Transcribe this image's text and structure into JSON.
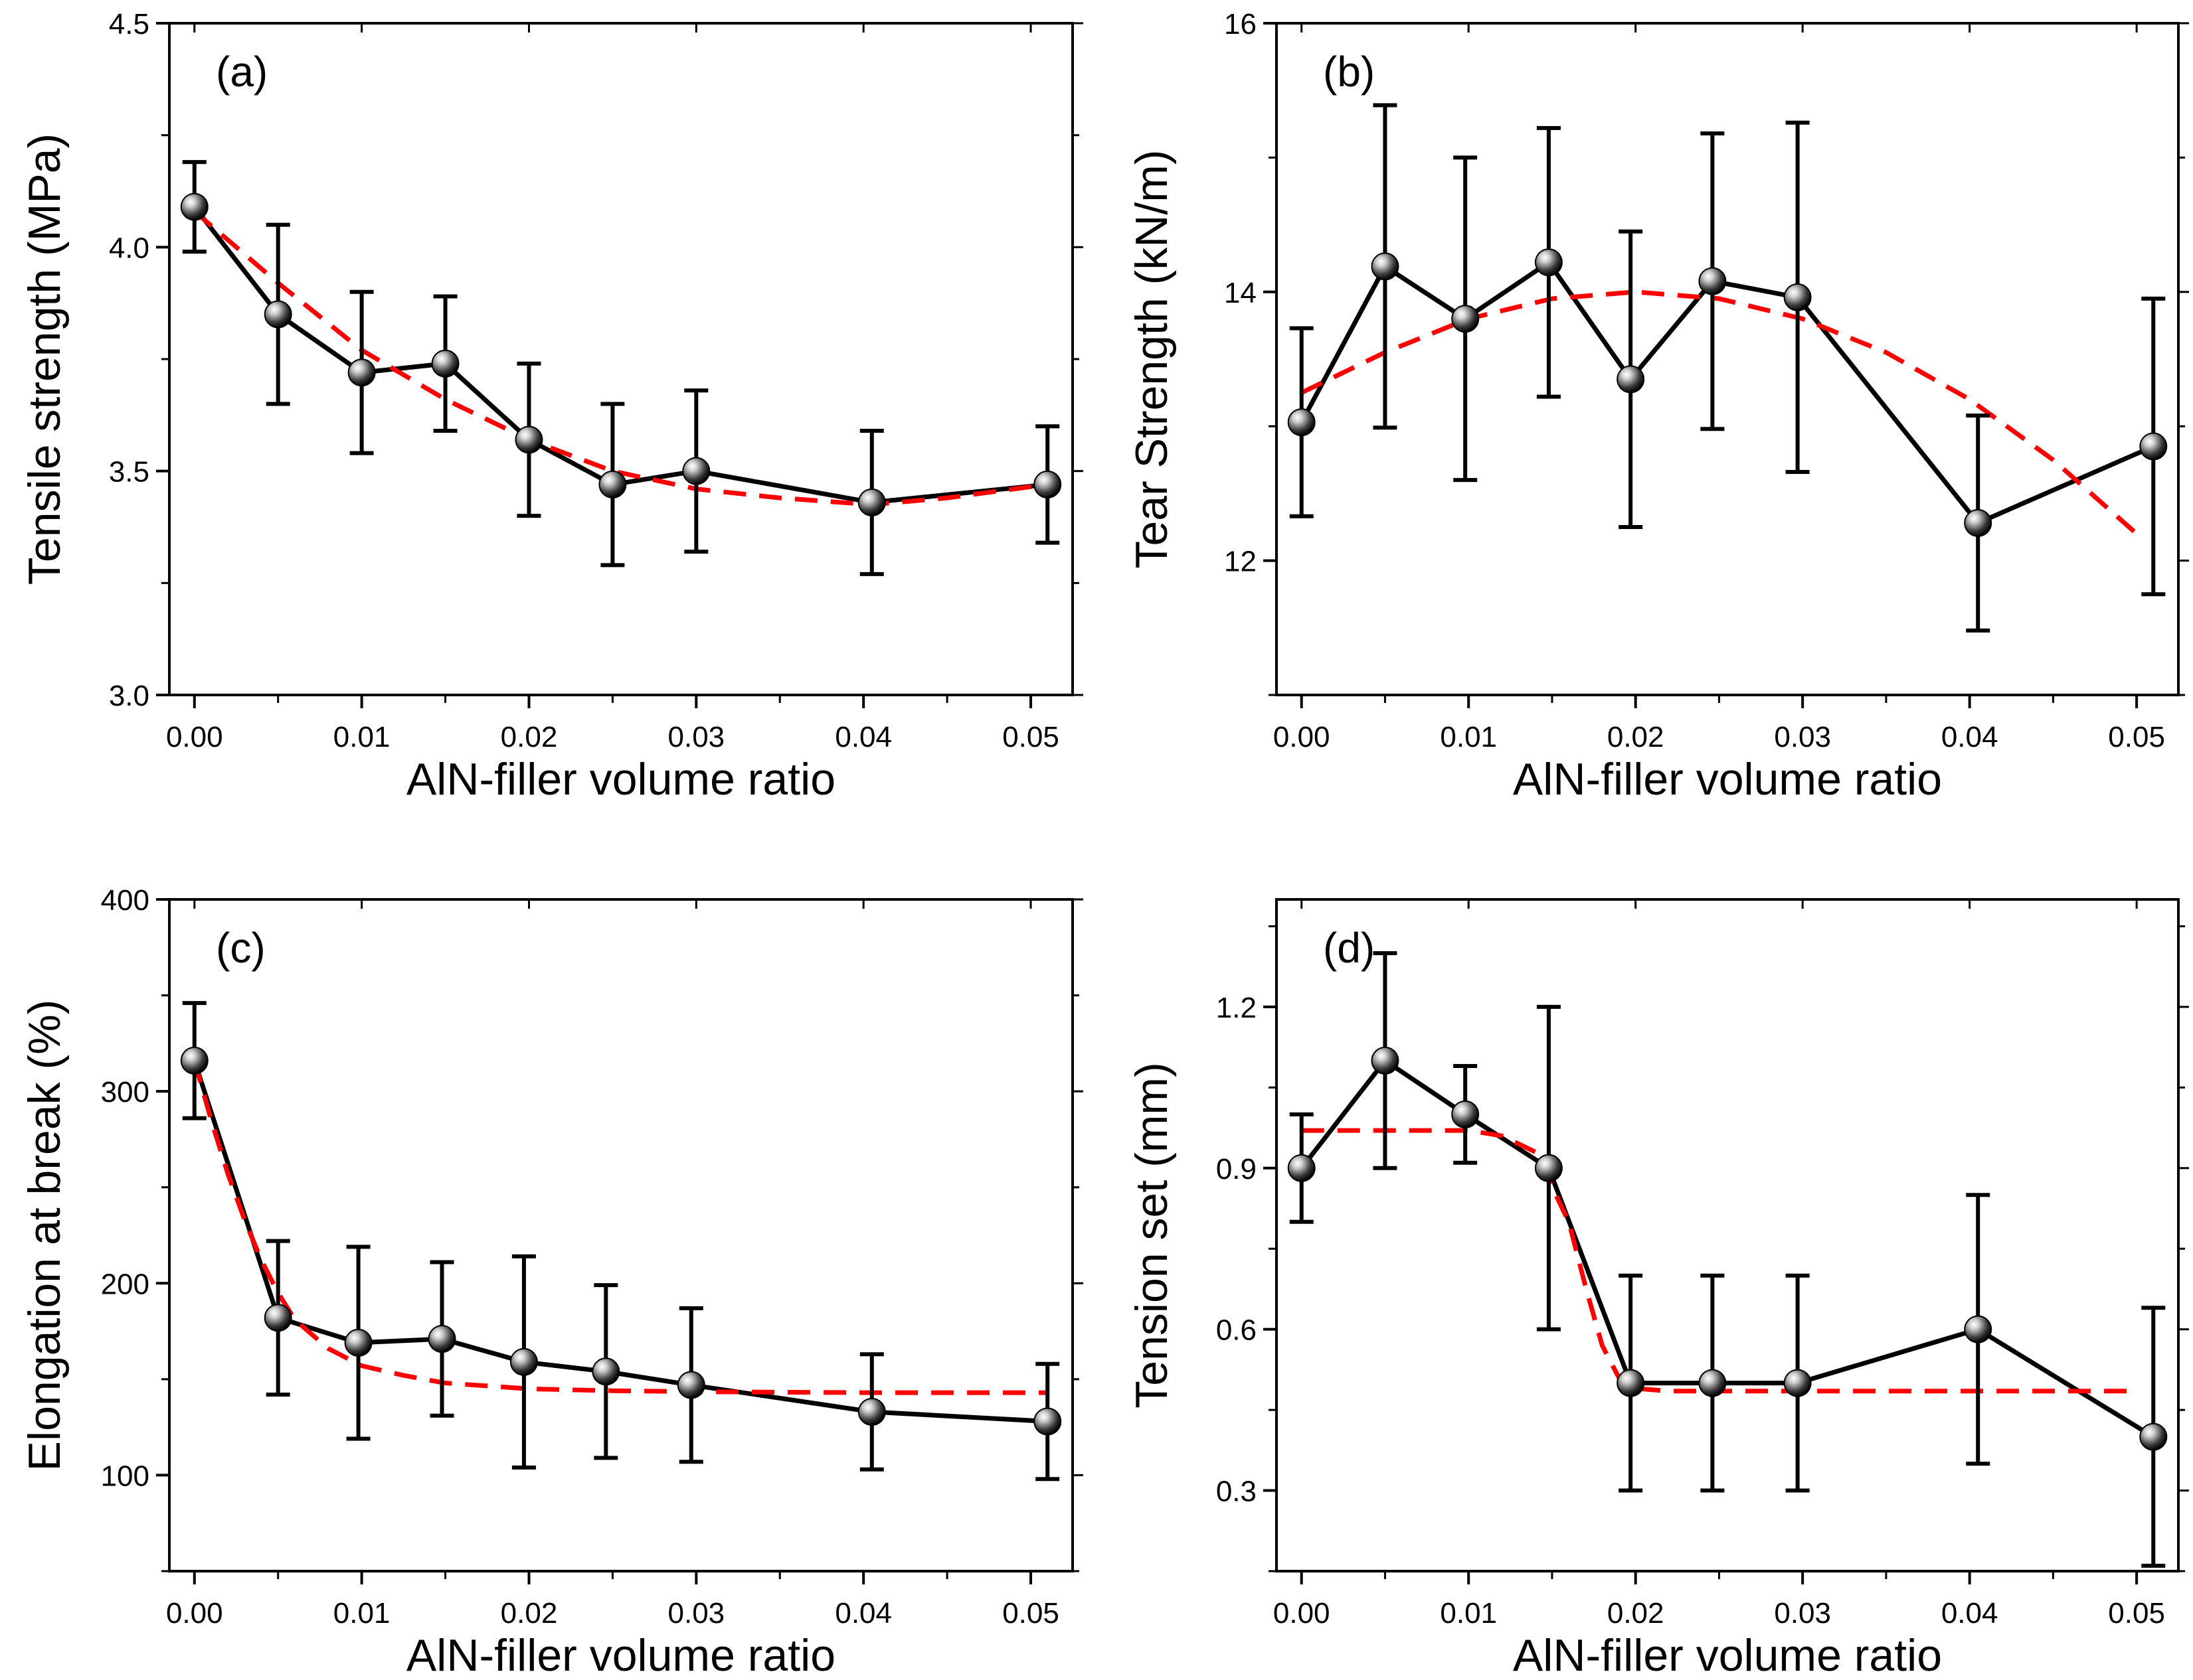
{
  "colors": {
    "measured": "#000000",
    "fit": "#ff0000",
    "frame": "#000000",
    "background": "#ffffff"
  },
  "chart_data": [
    {
      "type": "line",
      "panel": "(a)",
      "xlabel": "AlN-filler volume ratio",
      "ylabel": "Tensile strength (MPa)",
      "xlim": [
        -0.0015,
        0.0525
      ],
      "ylim": [
        3.0,
        4.5
      ],
      "xticks": [
        0.0,
        0.01,
        0.02,
        0.03,
        0.04,
        0.05
      ],
      "xtick_labels": [
        "0.00",
        "0.01",
        "0.02",
        "0.03",
        "0.04",
        "0.05"
      ],
      "yticks": [
        3.0,
        3.5,
        4.0,
        4.5
      ],
      "ytick_labels": [
        "3.0",
        "3.5",
        "4.0",
        "4.5"
      ],
      "yminor": [
        3.25,
        3.75,
        4.25
      ],
      "series": [
        {
          "name": "measured",
          "style": "solid-markers",
          "x": [
            0.0,
            0.005,
            0.01,
            0.015,
            0.02,
            0.025,
            0.03,
            0.0405,
            0.051
          ],
          "y": [
            4.09,
            3.85,
            3.72,
            3.74,
            3.57,
            3.47,
            3.5,
            3.43,
            3.47
          ],
          "err": [
            0.1,
            0.2,
            0.18,
            0.15,
            0.17,
            0.18,
            0.18,
            0.16,
            0.13
          ]
        },
        {
          "name": "fit",
          "style": "dashed",
          "x": [
            0.0,
            0.005,
            0.01,
            0.015,
            0.02,
            0.025,
            0.03,
            0.035,
            0.0405,
            0.045,
            0.051
          ],
          "y": [
            4.08,
            3.92,
            3.77,
            3.66,
            3.57,
            3.5,
            3.46,
            3.44,
            3.425,
            3.44,
            3.47
          ]
        }
      ]
    },
    {
      "type": "line",
      "panel": "(b)",
      "xlabel": "AlN-filler volume ratio",
      "ylabel": "Tear Strength (kN/m)",
      "xlim": [
        -0.0015,
        0.0525
      ],
      "ylim": [
        11.0,
        16.0
      ],
      "xticks": [
        0.0,
        0.01,
        0.02,
        0.03,
        0.04,
        0.05
      ],
      "xtick_labels": [
        "0.00",
        "0.01",
        "0.02",
        "0.03",
        "0.04",
        "0.05"
      ],
      "yticks": [
        12,
        14,
        16
      ],
      "ytick_labels": [
        "12",
        "14",
        "16"
      ],
      "yminor": [
        11,
        13,
        15
      ],
      "series": [
        {
          "name": "measured",
          "style": "solid-markers",
          "x": [
            0.0,
            0.005,
            0.0098,
            0.0148,
            0.0197,
            0.0246,
            0.0297,
            0.0405,
            0.051
          ],
          "y": [
            13.03,
            14.19,
            13.8,
            14.22,
            13.35,
            14.08,
            13.96,
            12.28,
            12.85
          ],
          "err": [
            0.7,
            1.2,
            1.2,
            1.0,
            1.1,
            1.1,
            1.3,
            0.8,
            1.1
          ]
        },
        {
          "name": "fit",
          "style": "dashed",
          "x": [
            0.0,
            0.005,
            0.01,
            0.015,
            0.02,
            0.025,
            0.03,
            0.035,
            0.04,
            0.045,
            0.05
          ],
          "y": [
            13.25,
            13.55,
            13.8,
            13.95,
            14.0,
            13.95,
            13.8,
            13.55,
            13.2,
            12.75,
            12.2
          ]
        }
      ]
    },
    {
      "type": "line",
      "panel": "(c)",
      "xlabel": "AlN-filler volume ratio",
      "ylabel": "Elongation at break (%)",
      "xlim": [
        -0.0015,
        0.0525
      ],
      "ylim": [
        50,
        400
      ],
      "xticks": [
        0.0,
        0.01,
        0.02,
        0.03,
        0.04,
        0.05
      ],
      "xtick_labels": [
        "0.00",
        "0.01",
        "0.02",
        "0.03",
        "0.04",
        "0.05"
      ],
      "yticks": [
        100,
        200,
        300,
        400
      ],
      "ytick_labels": [
        "100",
        "200",
        "300",
        "400"
      ],
      "yminor": [
        50,
        150,
        250,
        350
      ],
      "series": [
        {
          "name": "measured",
          "style": "solid-markers",
          "x": [
            0.0,
            0.005,
            0.0098,
            0.0148,
            0.0197,
            0.0246,
            0.0297,
            0.0405,
            0.051
          ],
          "y": [
            316,
            182,
            169,
            171,
            159,
            154,
            147,
            133,
            128
          ],
          "err": [
            30,
            40,
            50,
            40,
            55,
            45,
            40,
            30,
            30
          ]
        },
        {
          "name": "fit",
          "style": "dashed",
          "x": [
            0.0,
            0.001,
            0.002,
            0.003,
            0.004,
            0.005,
            0.006,
            0.008,
            0.01,
            0.0125,
            0.015,
            0.02,
            0.025,
            0.03,
            0.04,
            0.051
          ],
          "y": [
            316,
            285,
            257,
            233,
            212,
            195,
            181,
            166,
            157,
            152,
            148,
            145,
            144,
            143.5,
            143,
            143
          ]
        }
      ]
    },
    {
      "type": "line",
      "panel": "(d)",
      "xlabel": "AlN-filler volume ratio",
      "ylabel": "Tension set (mm)",
      "xlim": [
        -0.0015,
        0.0525
      ],
      "ylim": [
        0.15,
        1.4
      ],
      "xticks": [
        0.0,
        0.01,
        0.02,
        0.03,
        0.04,
        0.05
      ],
      "xtick_labels": [
        "0.00",
        "0.01",
        "0.02",
        "0.03",
        "0.04",
        "0.05"
      ],
      "yticks": [
        0.3,
        0.6,
        0.9,
        1.2
      ],
      "ytick_labels": [
        "0.3",
        "0.6",
        "0.9",
        "1.2"
      ],
      "yminor": [
        0.15,
        0.45,
        0.75,
        1.05,
        1.35
      ],
      "series": [
        {
          "name": "measured",
          "style": "solid-markers",
          "x": [
            0.0,
            0.005,
            0.0098,
            0.0148,
            0.0197,
            0.0246,
            0.0297,
            0.0405,
            0.051
          ],
          "y": [
            0.9,
            1.1,
            1.0,
            0.9,
            0.5,
            0.5,
            0.5,
            0.6,
            0.4
          ],
          "err": [
            0.1,
            0.2,
            0.09,
            0.3,
            0.2,
            0.2,
            0.2,
            0.25,
            0.24
          ]
        },
        {
          "name": "fit",
          "style": "dashed",
          "x": [
            0.0,
            0.01,
            0.012,
            0.014,
            0.016,
            0.017,
            0.018,
            0.019,
            0.02,
            0.022,
            0.03,
            0.05
          ],
          "y": [
            0.97,
            0.97,
            0.96,
            0.93,
            0.8,
            0.68,
            0.57,
            0.51,
            0.49,
            0.485,
            0.485,
            0.485
          ]
        }
      ]
    }
  ]
}
